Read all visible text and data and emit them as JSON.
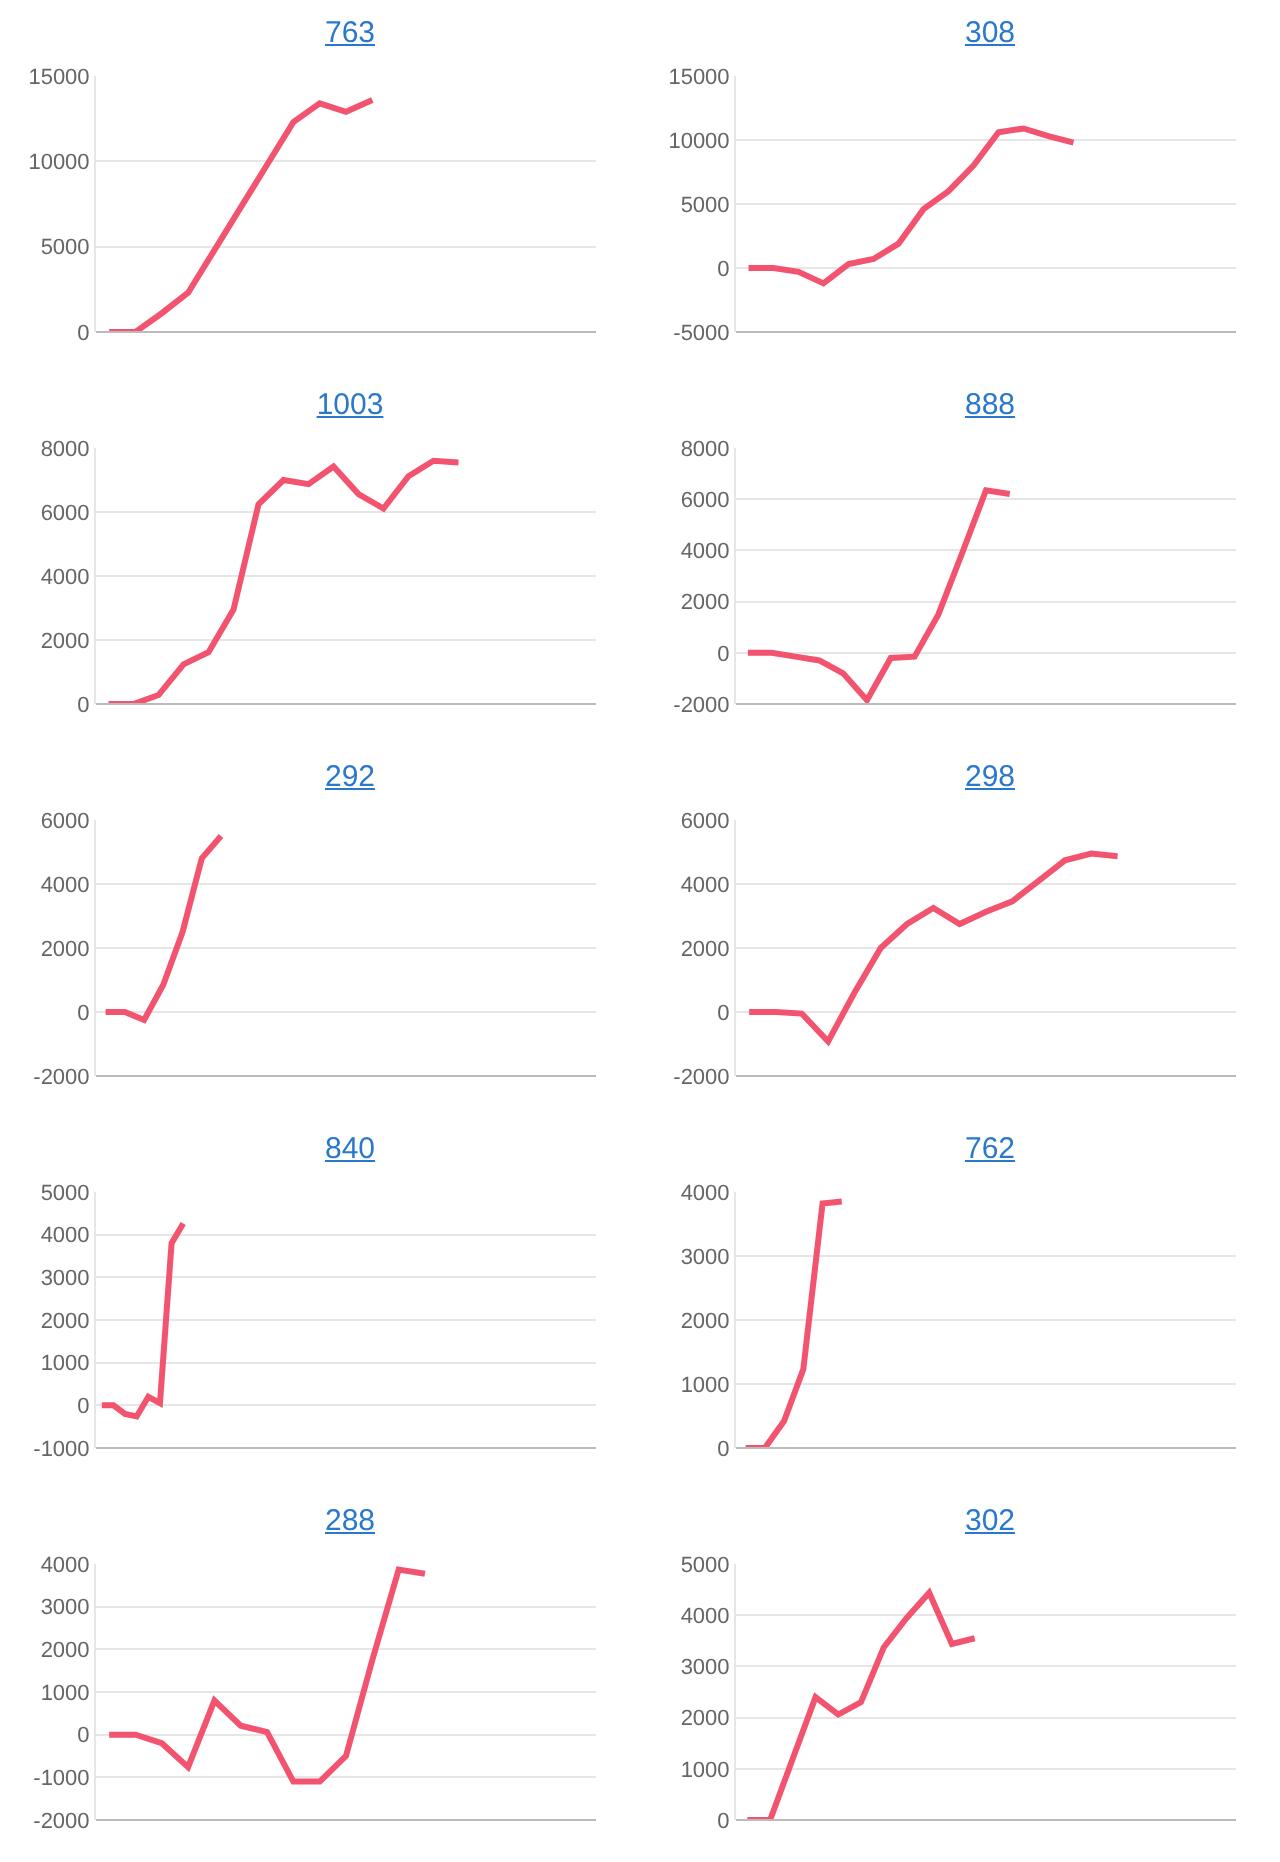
{
  "chart_data": [
    {
      "type": "line",
      "title": "763",
      "categories": [
        null,
        null,
        null,
        null,
        null,
        null,
        null,
        null,
        null,
        null,
        null,
        null,
        null,
        null,
        null,
        null,
        null,
        null,
        null
      ],
      "series": [
        {
          "color": "#f25470",
          "values": [
            0,
            0,
            1100,
            2300,
            4800,
            7300,
            9800,
            12300,
            13400,
            12900,
            13600,
            null,
            null,
            null,
            null,
            null,
            null,
            null,
            null
          ]
        }
      ],
      "ylim": [
        0,
        15000
      ],
      "yticks": [
        0,
        5000,
        10000,
        15000
      ],
      "grid": "y",
      "tick_labels": "y"
    },
    {
      "type": "line",
      "title": "308",
      "categories": [
        null,
        null,
        null,
        null,
        null,
        null,
        null,
        null,
        null,
        null,
        null,
        null,
        null,
        null,
        null,
        null,
        null,
        null,
        null,
        null
      ],
      "series": [
        {
          "color": "#f25470",
          "values": [
            0,
            0,
            -300,
            -1200,
            300,
            700,
            1900,
            4600,
            6000,
            8000,
            10600,
            10900,
            10300,
            9800,
            null,
            null,
            null,
            null,
            null,
            null
          ]
        }
      ],
      "ylim": [
        -5000,
        15000
      ],
      "yticks": [
        -5000,
        0,
        5000,
        10000,
        15000
      ],
      "grid": "y",
      "tick_labels": "y"
    },
    {
      "type": "line",
      "title": "1003",
      "categories": [
        null,
        null,
        null,
        null,
        null,
        null,
        null,
        null,
        null,
        null,
        null,
        null,
        null,
        null,
        null,
        null,
        null,
        null,
        null,
        null
      ],
      "series": [
        {
          "color": "#f25470",
          "values": [
            0,
            0,
            280,
            1240,
            1620,
            2950,
            6240,
            7000,
            6870,
            7420,
            6560,
            6110,
            7120,
            7600,
            7550,
            null,
            null,
            null,
            null,
            null
          ]
        }
      ],
      "ylim": [
        0,
        8000
      ],
      "yticks": [
        0,
        2000,
        4000,
        6000,
        8000
      ],
      "grid": "y",
      "tick_labels": "y"
    },
    {
      "type": "line",
      "title": "888",
      "categories": [
        null,
        null,
        null,
        null,
        null,
        null,
        null,
        null,
        null,
        null,
        null,
        null,
        null,
        null,
        null,
        null,
        null,
        null,
        null,
        null,
        null
      ],
      "series": [
        {
          "color": "#f25470",
          "values": [
            0,
            0,
            -150,
            -300,
            -800,
            -1850,
            -200,
            -150,
            1500,
            3900,
            6350,
            6200,
            null,
            null,
            null,
            null,
            null,
            null,
            null,
            null,
            null
          ]
        }
      ],
      "ylim": [
        -2000,
        8000
      ],
      "yticks": [
        -2000,
        0,
        2000,
        4000,
        6000,
        8000
      ],
      "grid": "y",
      "tick_labels": "y"
    },
    {
      "type": "line",
      "title": "292",
      "categories": [
        null,
        null,
        null,
        null,
        null,
        null,
        null,
        null,
        null,
        null,
        null,
        null,
        null,
        null,
        null,
        null,
        null,
        null,
        null,
        null,
        null,
        null,
        null,
        null,
        null,
        null
      ],
      "series": [
        {
          "color": "#f25470",
          "values": [
            0,
            0,
            -250,
            850,
            2500,
            4800,
            5500,
            null,
            null,
            null,
            null,
            null,
            null,
            null,
            null,
            null,
            null,
            null,
            null,
            null,
            null,
            null,
            null,
            null,
            null,
            null
          ]
        }
      ],
      "ylim": [
        -2000,
        6000
      ],
      "yticks": [
        -2000,
        0,
        2000,
        4000,
        6000
      ],
      "grid": "y",
      "tick_labels": "y"
    },
    {
      "type": "line",
      "title": "298",
      "categories": [
        null,
        null,
        null,
        null,
        null,
        null,
        null,
        null,
        null,
        null,
        null,
        null,
        null,
        null,
        null,
        null,
        null,
        null,
        null
      ],
      "series": [
        {
          "color": "#f25470",
          "values": [
            0,
            0,
            -50,
            -920,
            600,
            2000,
            2750,
            3250,
            2750,
            3130,
            3460,
            4100,
            4740,
            4950,
            4870,
            null,
            null,
            null,
            null
          ]
        }
      ],
      "ylim": [
        -2000,
        6000
      ],
      "yticks": [
        -2000,
        0,
        2000,
        4000,
        6000
      ],
      "grid": "y",
      "tick_labels": "y"
    },
    {
      "type": "line",
      "title": "840",
      "categories": [
        null,
        null,
        null,
        null,
        null,
        null,
        null,
        null,
        null,
        null,
        null,
        null,
        null,
        null,
        null,
        null,
        null,
        null,
        null,
        null,
        null,
        null,
        null,
        null,
        null,
        null,
        null,
        null,
        null,
        null,
        null,
        null,
        null,
        null,
        null,
        null,
        null,
        null,
        null,
        null,
        null,
        null,
        null
      ],
      "series": [
        {
          "color": "#f25470",
          "values": [
            0,
            0,
            -200,
            -260,
            200,
            50,
            3800,
            4260,
            null,
            null,
            null,
            null,
            null,
            null,
            null,
            null,
            null,
            null,
            null,
            null,
            null,
            null,
            null,
            null,
            null,
            null,
            null,
            null,
            null,
            null,
            null,
            null,
            null,
            null,
            null,
            null,
            null,
            null,
            null,
            null,
            null,
            null,
            null
          ]
        }
      ],
      "ylim": [
        -1000,
        5000
      ],
      "yticks": [
        -1000,
        0,
        1000,
        2000,
        3000,
        4000,
        5000
      ],
      "grid": "y",
      "tick_labels": "y"
    },
    {
      "type": "line",
      "title": "762",
      "categories": [
        null,
        null,
        null,
        null,
        null,
        null,
        null,
        null,
        null,
        null,
        null,
        null,
        null,
        null,
        null,
        null,
        null,
        null,
        null,
        null,
        null,
        null,
        null,
        null,
        null,
        null
      ],
      "series": [
        {
          "color": "#f25470",
          "values": [
            0,
            0,
            420,
            1230,
            3820,
            3850,
            null,
            null,
            null,
            null,
            null,
            null,
            null,
            null,
            null,
            null,
            null,
            null,
            null,
            null,
            null,
            null,
            null,
            null,
            null,
            null
          ]
        }
      ],
      "ylim": [
        0,
        4000
      ],
      "yticks": [
        0,
        1000,
        2000,
        3000,
        4000
      ],
      "grid": "y",
      "tick_labels": "y"
    },
    {
      "type": "line",
      "title": "288",
      "categories": [
        null,
        null,
        null,
        null,
        null,
        null,
        null,
        null,
        null,
        null,
        null,
        null,
        null,
        null,
        null,
        null,
        null,
        null,
        null
      ],
      "series": [
        {
          "color": "#f25470",
          "values": [
            0,
            0,
            -200,
            -760,
            800,
            210,
            60,
            -1100,
            -1100,
            -500,
            1750,
            3870,
            3770,
            null,
            null,
            null,
            null,
            null,
            null
          ]
        }
      ],
      "ylim": [
        -2000,
        4000
      ],
      "yticks": [
        -2000,
        -1000,
        0,
        1000,
        2000,
        3000,
        4000
      ],
      "grid": "y",
      "tick_labels": "y"
    },
    {
      "type": "line",
      "title": "302",
      "categories": [
        null,
        null,
        null,
        null,
        null,
        null,
        null,
        null,
        null,
        null,
        null,
        null,
        null,
        null,
        null,
        null,
        null,
        null,
        null,
        null,
        null,
        null
      ],
      "series": [
        {
          "color": "#f25470",
          "values": [
            0,
            0,
            1200,
            2400,
            2060,
            2300,
            3370,
            3940,
            4440,
            3440,
            3550,
            null,
            null,
            null,
            null,
            null,
            null,
            null,
            null,
            null,
            null,
            null
          ]
        }
      ],
      "ylim": [
        0,
        5000
      ],
      "yticks": [
        0,
        1000,
        2000,
        3000,
        4000,
        5000
      ],
      "grid": "y",
      "tick_labels": "y"
    }
  ]
}
